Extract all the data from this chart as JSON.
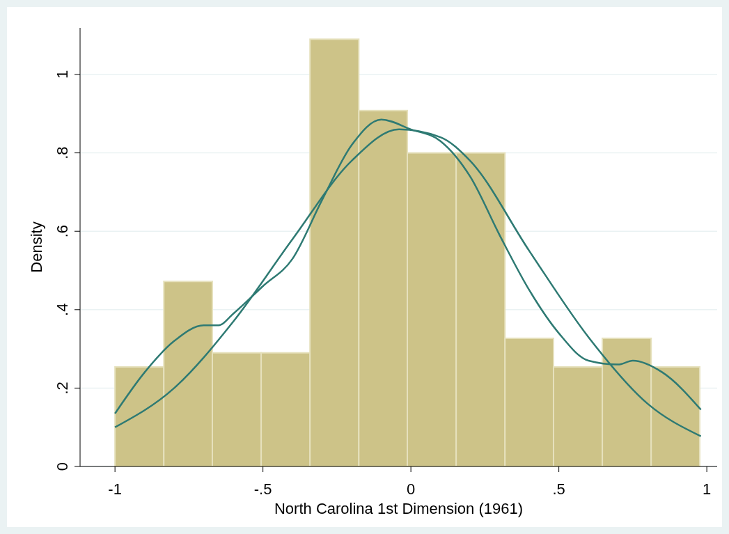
{
  "chart_data": {
    "type": "histogram",
    "xlabel": "North Carolina 1st Dimension (1961)",
    "ylabel": "Density",
    "bins": [
      -1,
      -0.835,
      -0.671,
      -0.506,
      -0.341,
      -0.176,
      -0.012,
      0.153,
      0.318,
      0.482,
      0.647,
      0.812,
      0.976
    ],
    "values": [
      0.254,
      0.472,
      0.29,
      0.29,
      1.09,
      0.908,
      0.8,
      0.8,
      0.327,
      0.254,
      0.327,
      0.254
    ],
    "color": "#cdc388",
    "series": [
      {
        "type": "line",
        "color": "#2e7a73",
        "x": [
          -1,
          -0.9,
          -0.8,
          -0.7,
          -0.65,
          -0.6,
          -0.5,
          -0.4,
          -0.3,
          -0.2,
          -0.1,
          0,
          0.1,
          0.2,
          0.3,
          0.4,
          0.5,
          0.6,
          0.7,
          0.75,
          0.85,
          0.98
        ],
        "values": [
          0.135,
          0.24,
          0.32,
          0.36,
          0.36,
          0.39,
          0.46,
          0.53,
          0.68,
          0.82,
          0.885,
          0.86,
          0.83,
          0.74,
          0.59,
          0.45,
          0.34,
          0.27,
          0.26,
          0.27,
          0.24,
          0.145
        ]
      },
      {
        "type": "line",
        "color": "#2e7a73",
        "x": [
          -1,
          -0.8,
          -0.6,
          -0.4,
          -0.2,
          -0.04,
          0.1,
          0.2,
          0.4,
          0.6,
          0.8,
          0.98
        ],
        "values": [
          0.1,
          0.2,
          0.37,
          0.58,
          0.78,
          0.86,
          0.84,
          0.78,
          0.55,
          0.33,
          0.16,
          0.077
        ]
      }
    ],
    "xlim": [
      -1.118,
      1.035
    ],
    "ylim": [
      0,
      1.119
    ],
    "xticks": [
      {
        "value": -1,
        "label": "-1"
      },
      {
        "value": -0.5,
        "label": "-.5"
      },
      0,
      {
        "value": 0.5,
        "label": ".5"
      },
      1
    ],
    "yticks": [
      0,
      {
        "value": 0.2,
        "label": ".2"
      },
      {
        "value": 0.4,
        "label": ".4"
      },
      {
        "value": 0.6,
        "label": ".6"
      },
      {
        "value": 0.8,
        "label": ".8"
      },
      1
    ],
    "grid": "y"
  }
}
